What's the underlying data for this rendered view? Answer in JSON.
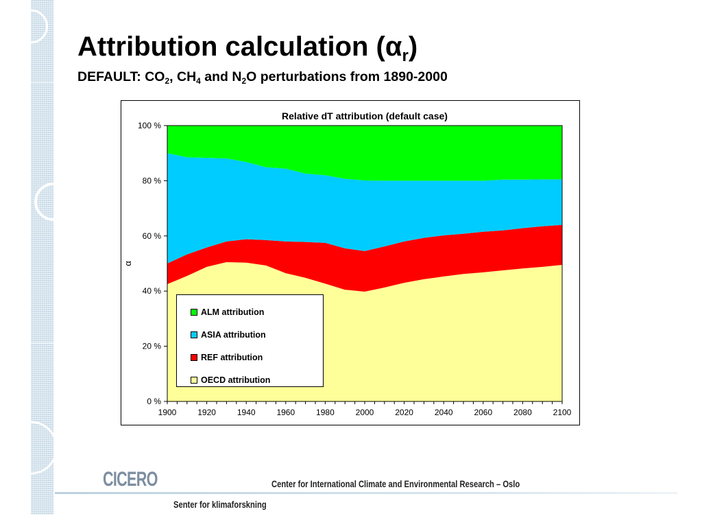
{
  "slide": {
    "title_main": "Attribution calculation (α",
    "title_sub": "r",
    "title_end": ")",
    "subtitle": {
      "p1": "DEFAULT: CO",
      "s1": "2",
      "p2": ", CH",
      "s2": "4",
      "p3": " and N",
      "s3": "2",
      "p4": "O perturbations from 1890-2000"
    }
  },
  "footer": {
    "logo_text": "CICERO",
    "org_name": "Center for International Climate and Environmental Research – Oslo",
    "org_name_norsk": "Senter for klimaforskning"
  },
  "chart_data": {
    "type": "area",
    "stacked": true,
    "title": "Relative dT attribution (default case)",
    "xlabel": "",
    "ylabel": "α",
    "xlim": [
      1900,
      2100
    ],
    "ylim": [
      0,
      100
    ],
    "x_ticks": [
      "1900",
      "1920",
      "1940",
      "1960",
      "1980",
      "2000",
      "2020",
      "2040",
      "2060",
      "2080",
      "2100"
    ],
    "y_ticks": [
      "0 %",
      "20 %",
      "40 %",
      "60 %",
      "80 %",
      "100 %"
    ],
    "legend_position": "lower-left",
    "x": [
      1900,
      1910,
      1920,
      1930,
      1940,
      1950,
      1960,
      1970,
      1980,
      1990,
      2000,
      2010,
      2020,
      2030,
      2040,
      2050,
      2060,
      2070,
      2080,
      2090,
      2100
    ],
    "series": [
      {
        "name": "OECD attribution",
        "color": "#ffff99",
        "values": [
          42.5,
          45.5,
          48.8,
          50.5,
          50.3,
          49.3,
          46.5,
          44.8,
          42.7,
          40.5,
          39.8,
          41.3,
          43.0,
          44.3,
          45.3,
          46.2,
          46.8,
          47.5,
          48.2,
          48.8,
          49.5
        ]
      },
      {
        "name": "REF attribution",
        "color": "#ff0000",
        "values": [
          7.5,
          7.8,
          7.0,
          7.5,
          8.5,
          9.2,
          11.5,
          13.0,
          14.8,
          15.0,
          14.7,
          14.9,
          15.0,
          15.0,
          14.9,
          14.6,
          14.7,
          14.5,
          14.6,
          14.7,
          14.5
        ]
      },
      {
        "name": "ASIA attribution",
        "color": "#00ccff",
        "values": [
          40.0,
          35.2,
          32.5,
          30.1,
          28.0,
          26.4,
          26.4,
          24.8,
          24.5,
          25.2,
          25.6,
          23.8,
          22.0,
          20.7,
          19.8,
          19.2,
          18.5,
          18.4,
          17.6,
          17.0,
          16.5
        ]
      },
      {
        "name": "ALM attribution",
        "color": "#00ff00",
        "values": [
          10.0,
          11.5,
          11.7,
          11.9,
          13.2,
          15.1,
          15.6,
          17.4,
          18.0,
          19.3,
          19.9,
          20.0,
          20.0,
          20.0,
          20.0,
          20.0,
          20.0,
          19.6,
          19.6,
          19.5,
          19.5
        ]
      }
    ]
  }
}
